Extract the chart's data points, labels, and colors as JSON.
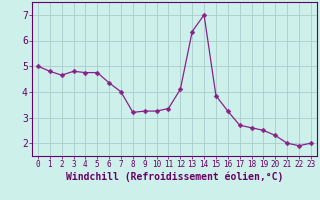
{
  "x": [
    0,
    1,
    2,
    3,
    4,
    5,
    6,
    7,
    8,
    9,
    10,
    11,
    12,
    13,
    14,
    15,
    16,
    17,
    18,
    19,
    20,
    21,
    22,
    23
  ],
  "y": [
    5.0,
    4.8,
    4.65,
    4.8,
    4.75,
    4.75,
    4.35,
    4.0,
    3.2,
    3.25,
    3.25,
    3.35,
    4.1,
    6.35,
    7.0,
    3.85,
    3.25,
    2.7,
    2.6,
    2.5,
    2.3,
    2.0,
    1.9,
    2.0
  ],
  "line_color": "#882288",
  "marker": "D",
  "marker_size": 2.5,
  "bg_color": "#cef0eb",
  "grid_color": "#aacccc",
  "xlabel": "Windchill (Refroidissement éolien,°C)",
  "xlim": [
    -0.5,
    23.5
  ],
  "ylim": [
    1.5,
    7.5
  ],
  "yticks": [
    2,
    3,
    4,
    5,
    6,
    7
  ],
  "xticks": [
    0,
    1,
    2,
    3,
    4,
    5,
    6,
    7,
    8,
    9,
    10,
    11,
    12,
    13,
    14,
    15,
    16,
    17,
    18,
    19,
    20,
    21,
    22,
    23
  ],
  "xlabel_color": "#660066",
  "tick_label_color": "#660066",
  "axis_color": "#660066",
  "xlabel_fontsize": 7.0,
  "tick_fontsize_x": 5.5,
  "tick_fontsize_y": 7.0
}
